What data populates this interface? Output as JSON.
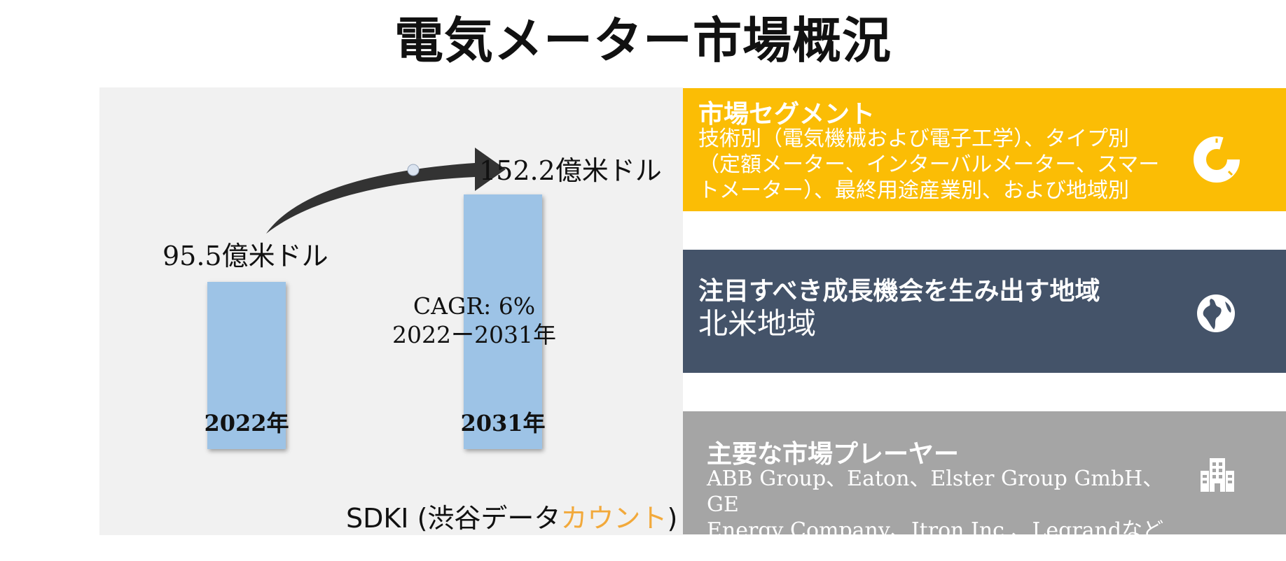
{
  "title": "電気メーター市場概況",
  "chart_data": {
    "type": "bar",
    "categories": [
      "2022年",
      "2031年"
    ],
    "values": [
      95.5,
      152.2
    ],
    "value_labels": [
      "95.5億米ドル",
      "152.2億米ドル"
    ],
    "annotation": {
      "cagr": "CAGR: 6%",
      "period": "2022ー2031年"
    },
    "bar_color": "#9dc3e6",
    "arrow_color": "#333333"
  },
  "brand": {
    "prefix": "SDKI (渋谷データ",
    "accent": "カウント",
    "suffix": ")",
    "accent_color": "#f2a93b"
  },
  "panels": [
    {
      "title": "市場セグメント",
      "lines": [
        "技術別（電気機械および電子工学）、タイプ別",
        "（定額メーター、インターバルメーター、スマー",
        "トメーター）、最終用途産業別、および地域別"
      ],
      "icon": "donut-chart-icon",
      "color": "#fbbd05"
    },
    {
      "title": "注目すべき成長機会を生み出す地域",
      "lines": [
        "北米地域"
      ],
      "icon": "globe-icon",
      "color": "#445369"
    },
    {
      "title": "主要な市場プレーヤー",
      "lines": [
        "ABB Group、Eaton、Elster Group GmbH、GE",
        "Energy Company、Itron Inc.、Legrandなど"
      ],
      "icon": "building-icon",
      "color": "#a5a5a5"
    }
  ]
}
